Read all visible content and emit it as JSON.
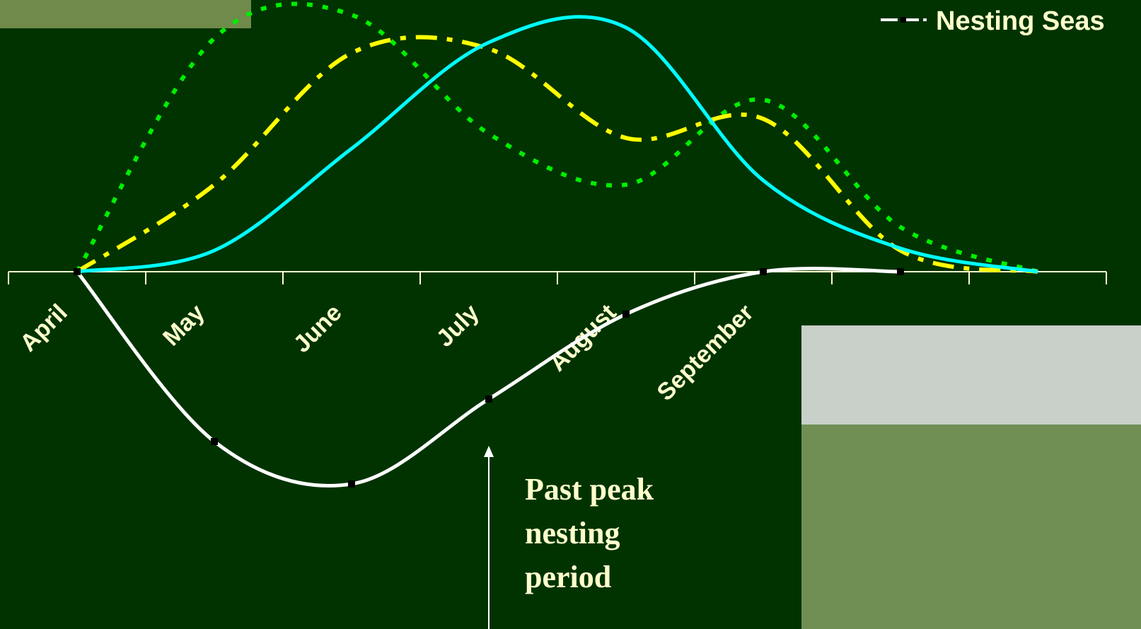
{
  "chart_data": {
    "type": "line",
    "categories": [
      "April",
      "May",
      "June",
      "July",
      "August",
      "September",
      null,
      null
    ],
    "ylim": [
      -160,
      128
    ],
    "series": [
      {
        "color": "#00ee00",
        "style": "dotted",
        "values": [
          0,
          110,
          121,
          65,
          41,
          81,
          21,
          0
        ]
      },
      {
        "color": "#ffff00",
        "style": "dashdot",
        "values": [
          0,
          41,
          103,
          105,
          63,
          72,
          10,
          0
        ]
      },
      {
        "color": "#00ffff",
        "style": "solid",
        "values": [
          0,
          10,
          58,
          108,
          115,
          43,
          11,
          0
        ]
      },
      {
        "name": "Nesting Seas",
        "color": "#ffffff",
        "style": "solid",
        "markers": true,
        "values": [
          0,
          -80,
          -100,
          -60,
          -20,
          0,
          0,
          null
        ]
      }
    ],
    "annotation": [
      "Past peak",
      "nesting",
      "period"
    ]
  }
}
